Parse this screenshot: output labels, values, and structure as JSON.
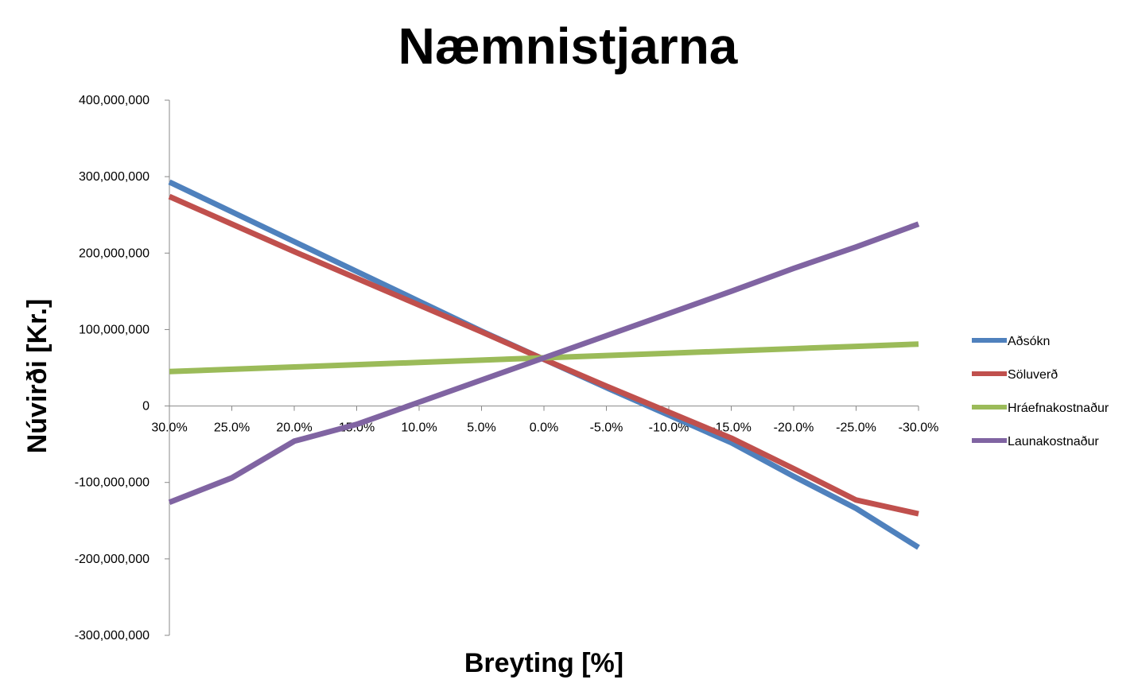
{
  "chart_data": {
    "type": "line",
    "title": "Næmnistjarna",
    "xlabel": "Breyting [%]",
    "ylabel": "Núvirði [Kr.]",
    "categories": [
      "30.0%",
      "25.0%",
      "20.0%",
      "15.0%",
      "10.0%",
      "5.0%",
      "0.0%",
      "-5.0%",
      "-10.0%",
      "-15.0%",
      "-20.0%",
      "-25.0%",
      "-30.0%"
    ],
    "ylim": [
      -300000000,
      400000000
    ],
    "yticks": [
      400000000,
      300000000,
      200000000,
      100000000,
      0,
      -100000000,
      -200000000,
      -300000000
    ],
    "ytick_labels": [
      "400,000,000",
      "300,000,000",
      "200,000,000",
      "100,000,000",
      "0",
      "-100,000,000",
      "-200,000,000",
      "-300,000,000"
    ],
    "grid": false,
    "legend_position": "right",
    "series": [
      {
        "name": "Aðsókn",
        "color": "#4F81BD",
        "values": [
          293000000,
          254000000,
          215000000,
          176000000,
          137000000,
          98000000,
          61000000,
          24000000,
          -12000000,
          -48000000,
          -92000000,
          -134000000,
          -185000000
        ]
      },
      {
        "name": "Söluverð",
        "color": "#C0504D",
        "values": [
          274000000,
          238000000,
          202000000,
          167000000,
          132000000,
          97000000,
          61000000,
          26000000,
          -8000000,
          -42000000,
          -82000000,
          -123000000,
          -141000000
        ]
      },
      {
        "name": "Hráefnakostnaður",
        "color": "#9BBB59",
        "values": [
          45000000,
          48000000,
          51000000,
          54000000,
          57000000,
          60000000,
          63000000,
          66000000,
          69000000,
          72000000,
          75000000,
          78000000,
          81000000
        ]
      },
      {
        "name": "Launakostnaður",
        "color": "#8064A2",
        "values": [
          -126000000,
          -94000000,
          -46000000,
          -24000000,
          5000000,
          34000000,
          63000000,
          92000000,
          121000000,
          150000000,
          180000000,
          208000000,
          238000000
        ]
      }
    ]
  }
}
